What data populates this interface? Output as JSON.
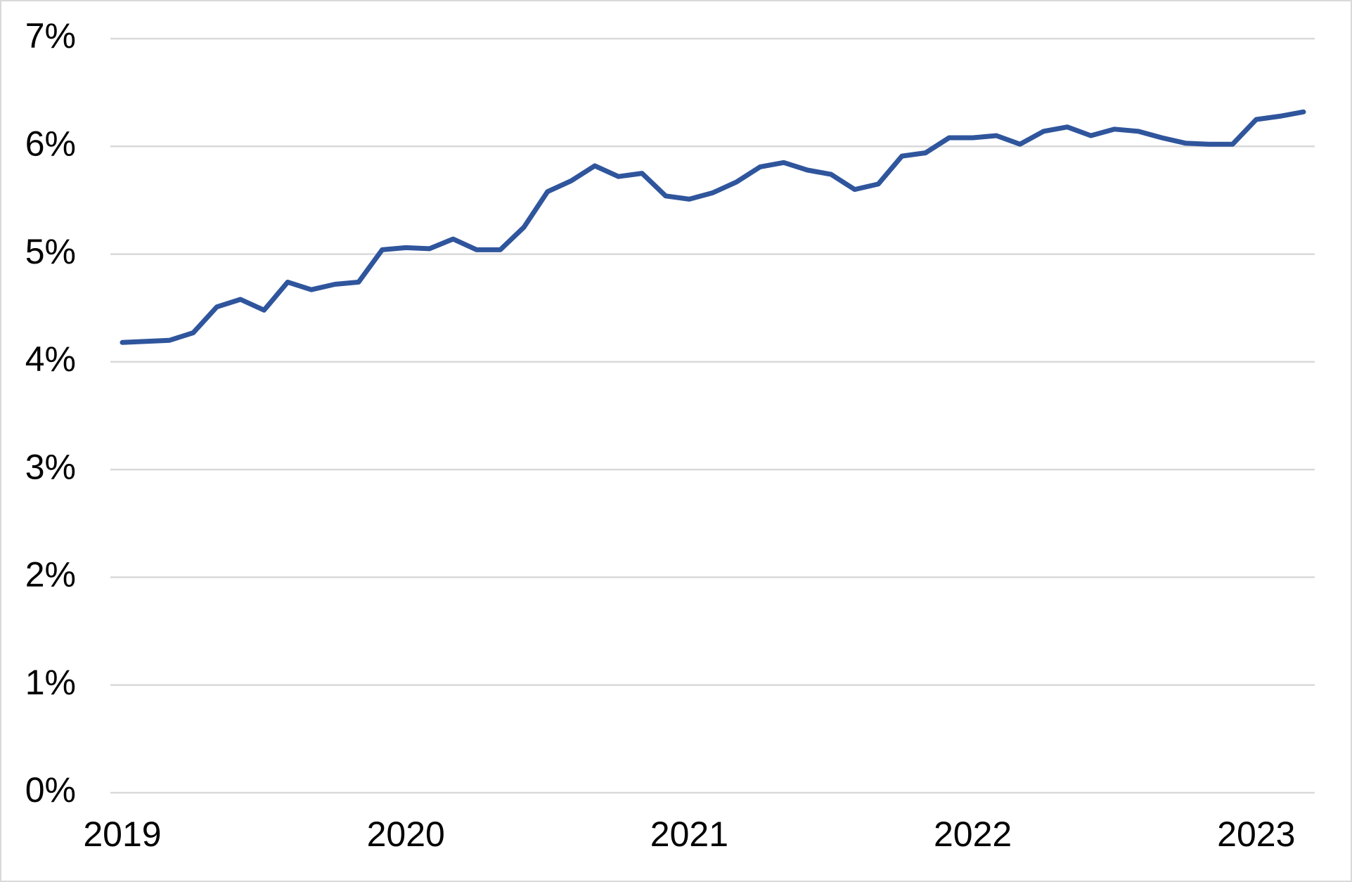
{
  "chart_data": {
    "type": "line",
    "categories": [
      "2019",
      null,
      null,
      null,
      null,
      null,
      null,
      null,
      null,
      null,
      null,
      null,
      "2020",
      null,
      null,
      null,
      null,
      null,
      null,
      null,
      null,
      null,
      null,
      null,
      "2021",
      null,
      null,
      null,
      null,
      null,
      null,
      null,
      null,
      null,
      null,
      null,
      "2022",
      null,
      null,
      null,
      null,
      null,
      null,
      null,
      null,
      null,
      null,
      null,
      "2023",
      null,
      null
    ],
    "series": [
      {
        "color": "#2f559c",
        "values": [
          4.18,
          4.19,
          4.2,
          4.27,
          4.51,
          4.58,
          4.48,
          4.74,
          4.67,
          4.72,
          4.74,
          5.04,
          5.06,
          5.05,
          5.14,
          5.04,
          5.04,
          5.25,
          5.58,
          5.68,
          5.82,
          5.72,
          5.75,
          5.54,
          5.51,
          5.57,
          5.67,
          5.81,
          5.85,
          5.78,
          5.74,
          5.6,
          5.65,
          5.91,
          5.94,
          6.08,
          6.08,
          6.1,
          6.02,
          6.14,
          6.18,
          6.1,
          6.16,
          6.14,
          6.08,
          6.03,
          6.02,
          6.02,
          6.25,
          6.28,
          6.32
        ]
      }
    ],
    "ylim": [
      0,
      7
    ],
    "yticks": [
      {
        "value": 0,
        "label": "0%"
      },
      {
        "value": 1,
        "label": "1%"
      },
      {
        "value": 2,
        "label": "2%"
      },
      {
        "value": 3,
        "label": "3%"
      },
      {
        "value": 4,
        "label": "4%"
      },
      {
        "value": 5,
        "label": "5%"
      },
      {
        "value": 6,
        "label": "6%"
      },
      {
        "value": 7,
        "label": "7%"
      }
    ],
    "grid": true
  }
}
